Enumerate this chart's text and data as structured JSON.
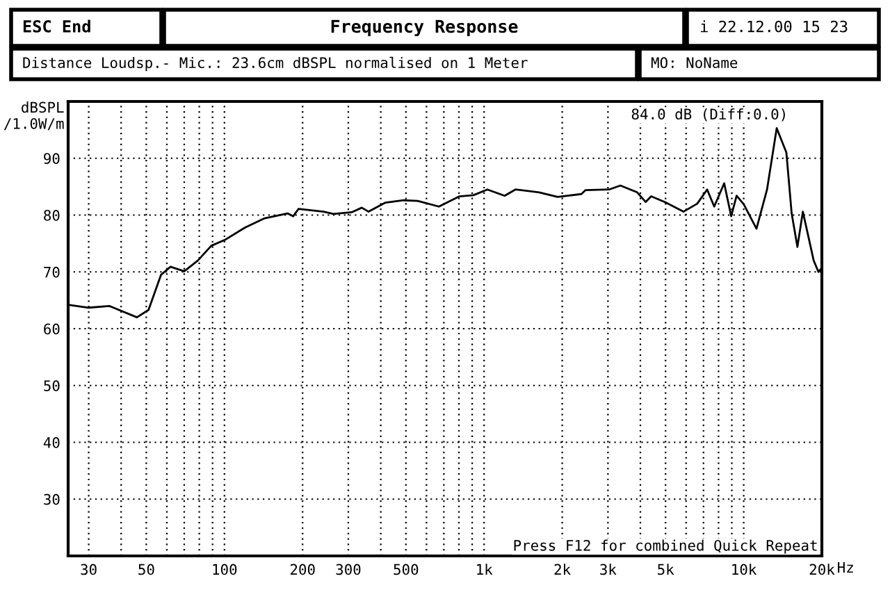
{
  "chart_data": {
    "type": "line",
    "title": "Frequency Response",
    "subtitle": "Distance Loudsp.- Mic.: 23.6cm dBSPL normalised on 1 Meter",
    "ylabel": "dBSPL\n/1.0W/m",
    "annotations": [
      "ESC End",
      "i 22.12.00 15 23",
      "MO: NoName",
      "84.0 dB (Diff:0.0)",
      "Press F12 for combined Quick Repeat"
    ],
    "log": "x",
    "grid": true,
    "line_style": "solid",
    "marker": "none",
    "xlim": [
      25,
      20000
    ],
    "ylim": [
      20,
      100
    ],
    "xticks": [
      30,
      {
        "value": 40,
        "label": null
      },
      50,
      {
        "value": 60,
        "label": null
      },
      {
        "value": 70,
        "label": null
      },
      {
        "value": 80,
        "label": null
      },
      {
        "value": 90,
        "label": null
      },
      100,
      200,
      300,
      {
        "value": 400,
        "label": null
      },
      500,
      {
        "value": 600,
        "label": null
      },
      {
        "value": 700,
        "label": null
      },
      {
        "value": 800,
        "label": null
      },
      {
        "value": 900,
        "label": null
      },
      {
        "value": 1000,
        "label": "1k"
      },
      {
        "value": 2000,
        "label": "2k"
      },
      {
        "value": 3000,
        "label": "3k"
      },
      {
        "value": 4000,
        "label": null
      },
      {
        "value": 5000,
        "label": "5k"
      },
      {
        "value": 6000,
        "label": null
      },
      {
        "value": 7000,
        "label": null
      },
      {
        "value": 8000,
        "label": null
      },
      {
        "value": 9000,
        "label": null
      },
      {
        "value": 10000,
        "label": "10k"
      },
      {
        "value": 20000,
        "label": "20k"
      }
    ],
    "xlabel": "Hz",
    "yticks": [
      30,
      40,
      50,
      60,
      70,
      80,
      90
    ],
    "series": [
      {
        "color": "#000000",
        "x": [
          25,
          30,
          36,
          46,
          51,
          57,
          62,
          70,
          79,
          89,
          101,
          120,
          142,
          175,
          184,
          193,
          241,
          263,
          309,
          338,
          359,
          417,
          490,
          555,
          670,
          804,
          910,
          1030,
          1200,
          1320,
          1630,
          1920,
          2370,
          2460,
          3030,
          3350,
          3890,
          4190,
          4400,
          4970,
          5860,
          6620,
          7230,
          7700,
          8410,
          8950,
          9390,
          10000,
          11200,
          12300,
          13400,
          14600,
          15300,
          16100,
          16900,
          18600,
          19400,
          20000
        ],
        "values": [
          64.2,
          63.7,
          64.0,
          62.0,
          63.3,
          69.5,
          70.9,
          70.1,
          72.0,
          74.6,
          75.7,
          77.8,
          79.4,
          80.3,
          79.8,
          81.1,
          80.6,
          80.2,
          80.5,
          81.3,
          80.6,
          82.2,
          82.6,
          82.5,
          81.5,
          83.3,
          83.5,
          84.5,
          83.4,
          84.5,
          84.0,
          83.2,
          83.7,
          84.4,
          84.5,
          85.2,
          84.0,
          82.3,
          83.3,
          82.3,
          80.6,
          82.0,
          84.5,
          81.5,
          85.6,
          79.8,
          83.4,
          81.9,
          77.6,
          84.5,
          95.3,
          91.0,
          80.3,
          74.4,
          80.6,
          72.0,
          70.0,
          70.7
        ]
      }
    ]
  }
}
